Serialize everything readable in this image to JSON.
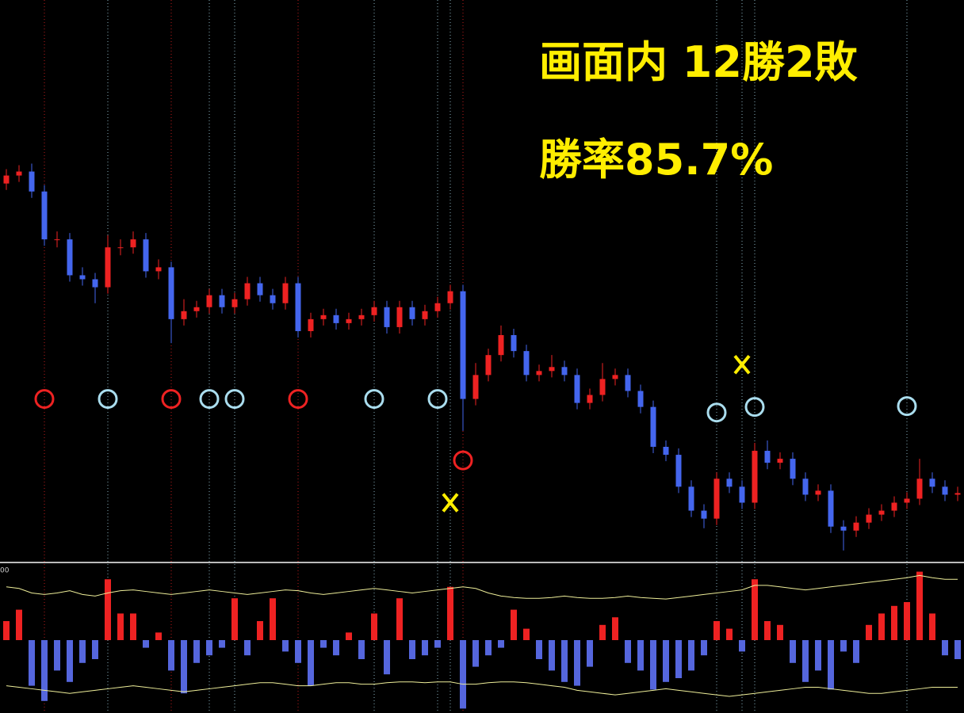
{
  "chart_data": [
    {
      "type": "candlestick",
      "annotations": [
        "画面内 12勝2敗",
        "勝率85.7%"
      ],
      "up_color": "#ee2222",
      "down_color": "#4466ee",
      "ylim": [
        0,
        700
      ],
      "values": [
        [
          470,
          488,
          462,
          480
        ],
        [
          480,
          493,
          472,
          485
        ],
        [
          485,
          495,
          452,
          460
        ],
        [
          460,
          468,
          392,
          400
        ],
        [
          400,
          410,
          390,
          400
        ],
        [
          400,
          408,
          347,
          355
        ],
        [
          355,
          365,
          342,
          350
        ],
        [
          350,
          358,
          320,
          340
        ],
        [
          340,
          405,
          332,
          390
        ],
        [
          390,
          400,
          380,
          390
        ],
        [
          390,
          410,
          382,
          400
        ],
        [
          400,
          408,
          352,
          360
        ],
        [
          360,
          375,
          350,
          365
        ],
        [
          365,
          372,
          270,
          300
        ],
        [
          300,
          325,
          292,
          310
        ],
        [
          310,
          323,
          302,
          315
        ],
        [
          315,
          338,
          307,
          330
        ],
        [
          330,
          338,
          307,
          315
        ],
        [
          315,
          333,
          307,
          325
        ],
        [
          325,
          353,
          317,
          345
        ],
        [
          345,
          353,
          322,
          330
        ],
        [
          330,
          338,
          312,
          320
        ],
        [
          320,
          353,
          312,
          345
        ],
        [
          345,
          353,
          277,
          285
        ],
        [
          285,
          308,
          277,
          300
        ],
        [
          300,
          313,
          292,
          305
        ],
        [
          305,
          313,
          287,
          295
        ],
        [
          295,
          308,
          287,
          300
        ],
        [
          300,
          313,
          292,
          305
        ],
        [
          305,
          323,
          297,
          315
        ],
        [
          315,
          323,
          282,
          290
        ],
        [
          290,
          323,
          282,
          315
        ],
        [
          315,
          323,
          292,
          300
        ],
        [
          300,
          318,
          292,
          310
        ],
        [
          310,
          328,
          302,
          320
        ],
        [
          320,
          343,
          312,
          335
        ],
        [
          335,
          343,
          160,
          200
        ],
        [
          200,
          245,
          192,
          230
        ],
        [
          230,
          263,
          222,
          255
        ],
        [
          255,
          292,
          247,
          280
        ],
        [
          280,
          288,
          252,
          260
        ],
        [
          260,
          268,
          222,
          230
        ],
        [
          230,
          243,
          222,
          235
        ],
        [
          235,
          255,
          227,
          240
        ],
        [
          240,
          248,
          222,
          230
        ],
        [
          230,
          238,
          187,
          195
        ],
        [
          195,
          213,
          187,
          205
        ],
        [
          205,
          245,
          197,
          225
        ],
        [
          225,
          238,
          217,
          230
        ],
        [
          230,
          238,
          202,
          210
        ],
        [
          210,
          218,
          182,
          190
        ],
        [
          190,
          198,
          132,
          140
        ],
        [
          140,
          148,
          122,
          130
        ],
        [
          130,
          138,
          82,
          90
        ],
        [
          90,
          98,
          52,
          60
        ],
        [
          60,
          68,
          38,
          50
        ],
        [
          50,
          108,
          42,
          100
        ],
        [
          100,
          108,
          82,
          90
        ],
        [
          90,
          98,
          62,
          70
        ],
        [
          70,
          145,
          62,
          135
        ],
        [
          135,
          148,
          112,
          120
        ],
        [
          120,
          133,
          112,
          125
        ],
        [
          125,
          133,
          92,
          100
        ],
        [
          100,
          108,
          72,
          80
        ],
        [
          80,
          93,
          72,
          85
        ],
        [
          85,
          93,
          32,
          40
        ],
        [
          40,
          48,
          10,
          35
        ],
        [
          35,
          53,
          27,
          45
        ],
        [
          45,
          63,
          37,
          55
        ],
        [
          55,
          68,
          47,
          60
        ],
        [
          60,
          78,
          52,
          70
        ],
        [
          70,
          83,
          62,
          75
        ],
        [
          75,
          125,
          67,
          100
        ],
        [
          100,
          108,
          82,
          90
        ],
        [
          90,
          98,
          72,
          80
        ],
        [
          80,
          90,
          72,
          82
        ]
      ],
      "markers": [
        {
          "x": 3,
          "y": 200,
          "color": "#ee2222",
          "shape": "circle"
        },
        {
          "x": 8,
          "y": 200,
          "color": "#aaddee",
          "shape": "circle"
        },
        {
          "x": 13,
          "y": 200,
          "color": "#ee2222",
          "shape": "circle"
        },
        {
          "x": 16,
          "y": 200,
          "color": "#aaddee",
          "shape": "circle"
        },
        {
          "x": 18,
          "y": 200,
          "color": "#aaddee",
          "shape": "circle"
        },
        {
          "x": 23,
          "y": 200,
          "color": "#ee2222",
          "shape": "circle"
        },
        {
          "x": 29,
          "y": 200,
          "color": "#aaddee",
          "shape": "circle"
        },
        {
          "x": 34,
          "y": 200,
          "color": "#aaddee",
          "shape": "circle"
        },
        {
          "x": 36,
          "y": 123,
          "color": "#ee2222",
          "shape": "circle"
        },
        {
          "x": 56,
          "y": 183,
          "color": "#aaddee",
          "shape": "circle"
        },
        {
          "x": 59,
          "y": 190,
          "color": "#aaddee",
          "shape": "circle"
        },
        {
          "x": 71,
          "y": 191,
          "color": "#aaddee",
          "shape": "circle"
        },
        {
          "x": 35,
          "y": 70,
          "color": "#ffee00",
          "shape": "x"
        },
        {
          "x": 58,
          "y": 243,
          "color": "#ffee00",
          "shape": "x"
        }
      ]
    },
    {
      "type": "bar",
      "pos_color": "#ee2222",
      "neg_color": "#5566dd",
      "ylim": [
        -100,
        100
      ],
      "yticks": [
        {
          "value": 100,
          "label": "00"
        }
      ],
      "values": [
        25,
        40,
        -60,
        -80,
        -40,
        -55,
        -30,
        -25,
        80,
        35,
        35,
        -10,
        10,
        -40,
        -70,
        -30,
        -20,
        -10,
        55,
        -20,
        25,
        55,
        -15,
        -30,
        -60,
        -10,
        -20,
        10,
        -25,
        35,
        -45,
        55,
        -25,
        -20,
        -10,
        70,
        -90,
        -35,
        -20,
        -10,
        40,
        15,
        -25,
        -40,
        -55,
        -60,
        -35,
        20,
        30,
        -30,
        -40,
        -65,
        -55,
        -50,
        -40,
        -20,
        25,
        15,
        -15,
        80,
        25,
        20,
        -30,
        -55,
        -40,
        -65,
        -15,
        -30,
        20,
        35,
        45,
        50,
        90,
        35,
        -20,
        -25
      ],
      "series": [
        {
          "color": "#eeee99",
          "values": [
            70,
            68,
            62,
            60,
            62,
            65,
            60,
            58,
            62,
            65,
            66,
            64,
            62,
            60,
            62,
            64,
            66,
            64,
            62,
            60,
            62,
            64,
            66,
            65,
            62,
            60,
            62,
            64,
            66,
            68,
            66,
            64,
            62,
            64,
            66,
            68,
            70,
            68,
            62,
            58,
            56,
            55,
            55,
            56,
            58,
            56,
            55,
            55,
            56,
            58,
            56,
            55,
            54,
            56,
            58,
            60,
            62,
            64,
            66,
            72,
            72,
            70,
            68,
            66,
            68,
            70,
            72,
            74,
            76,
            78,
            80,
            82,
            85,
            82,
            80,
            80
          ]
        },
        {
          "color": "#eeee99",
          "values": [
            -60,
            -62,
            -64,
            -66,
            -68,
            -70,
            -68,
            -66,
            -64,
            -62,
            -60,
            -62,
            -64,
            -66,
            -68,
            -66,
            -64,
            -62,
            -60,
            -58,
            -56,
            -56,
            -58,
            -60,
            -60,
            -58,
            -56,
            -56,
            -58,
            -58,
            -56,
            -55,
            -55,
            -56,
            -55,
            -55,
            -58,
            -58,
            -56,
            -55,
            -55,
            -56,
            -58,
            -60,
            -62,
            -66,
            -68,
            -70,
            -72,
            -70,
            -68,
            -66,
            -64,
            -66,
            -68,
            -70,
            -72,
            -74,
            -72,
            -70,
            -68,
            -66,
            -64,
            -62,
            -62,
            -64,
            -66,
            -68,
            -70,
            -70,
            -68,
            -66,
            -64,
            -62,
            -62,
            -62
          ]
        }
      ]
    }
  ]
}
